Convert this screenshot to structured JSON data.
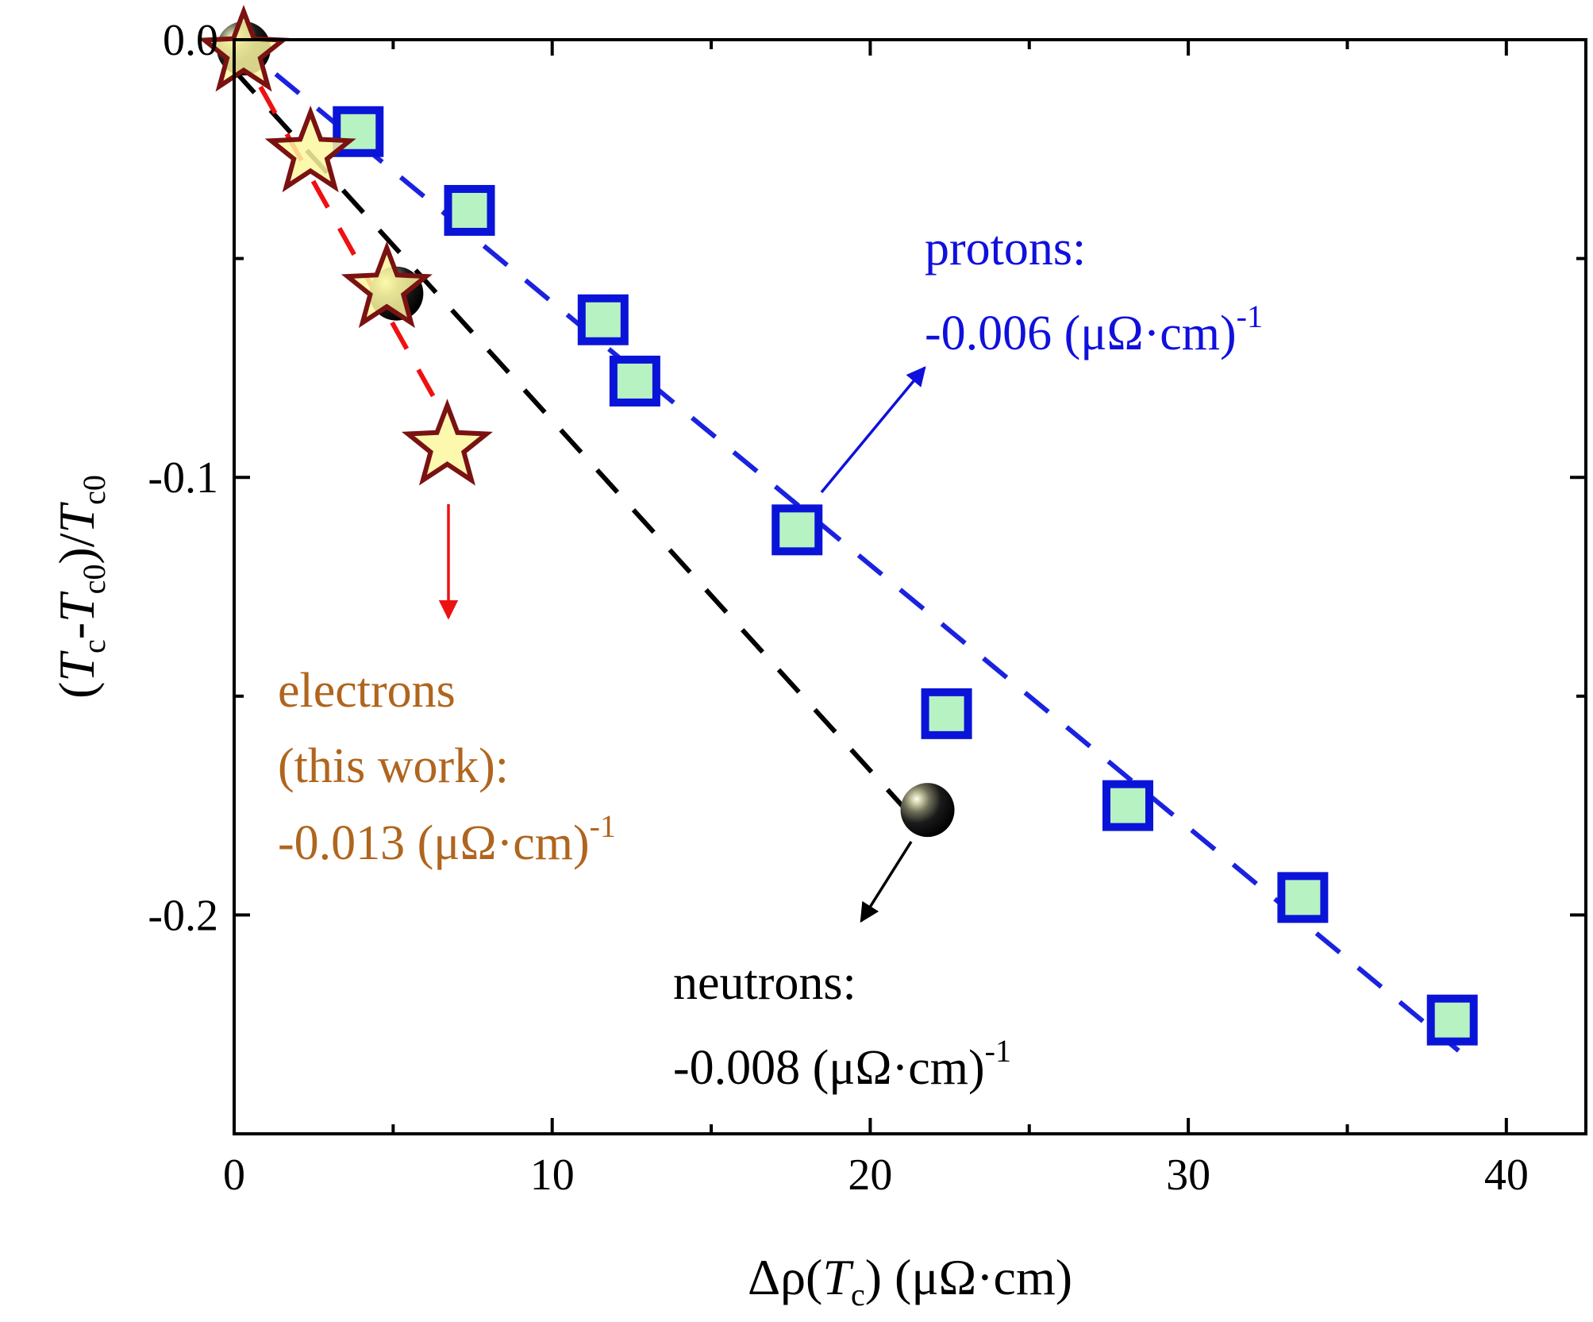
{
  "chart_data": {
    "type": "scatter",
    "title": "",
    "xlabel": {
      "prefix": "Δρ(",
      "italic": "T",
      "sub": "c",
      "suffix": ") (μΩ·cm)"
    },
    "ylabel": {
      "open": "(",
      "t1": "T",
      "s1": "c",
      "minus": "-",
      "t2": "T",
      "s2": "c0",
      "close": ")/",
      "t3": "T",
      "s3": "c0"
    },
    "xlim": [
      0,
      42.5
    ],
    "ylim": [
      -0.25,
      0.0
    ],
    "x_ticks": [
      0,
      10,
      20,
      30,
      40
    ],
    "x_tick_labels": [
      "0",
      "10",
      "20",
      "30",
      "40"
    ],
    "y_ticks": [
      0.0,
      -0.1,
      -0.2
    ],
    "y_tick_labels": [
      "0.0",
      "-0.1",
      "-0.2"
    ],
    "series": [
      {
        "name": "protons",
        "marker": "square",
        "fill": "#b7f2c2",
        "edge": "#0a14d8",
        "x": [
          3.9,
          7.4,
          11.6,
          12.6,
          17.7,
          22.4,
          28.1,
          33.6,
          38.3
        ],
        "y": [
          -0.021,
          -0.039,
          -0.064,
          -0.078,
          -0.112,
          -0.154,
          -0.175,
          -0.196,
          -0.224
        ]
      },
      {
        "name": "neutrons",
        "marker": "sphere",
        "fill": "#000000",
        "edge": "#000000",
        "x": [
          0.3,
          5.1,
          21.8
        ],
        "y": [
          -0.002,
          -0.058,
          -0.176
        ]
      },
      {
        "name": "electrons (this work)",
        "marker": "star",
        "fill": "#fbf7a0",
        "edge": "#7a1212",
        "x": [
          0.3,
          2.4,
          4.8,
          6.7
        ],
        "y": [
          -0.003,
          -0.026,
          -0.057,
          -0.093
        ]
      }
    ],
    "fits": [
      {
        "name": "protons fit",
        "color": "#1a22e0",
        "x": [
          0,
          38.5
        ],
        "y": [
          0.0,
          -0.231
        ]
      },
      {
        "name": "neutrons fit",
        "color": "#000000",
        "x": [
          0,
          21.5
        ],
        "y": [
          -0.007,
          -0.179
        ]
      },
      {
        "name": "electrons fit",
        "color": "#ee1111",
        "x": [
          0,
          6.3
        ],
        "y": [
          0.0,
          -0.082
        ]
      }
    ],
    "annotations": [
      {
        "id": "protons",
        "color": "#1010dd",
        "line1": "protons:",
        "value": "-0.006 (μΩ·cm)",
        "sup": "-1"
      },
      {
        "id": "electrons",
        "color": "#b0651e",
        "line1": "electrons",
        "line2": "(this work):",
        "value": "-0.013  (μΩ·cm)",
        "sup": "-1"
      },
      {
        "id": "neutrons",
        "color": "#000000",
        "line1": "neutrons:",
        "value": "-0.008  (μΩ·cm)",
        "sup": "-1"
      }
    ]
  }
}
